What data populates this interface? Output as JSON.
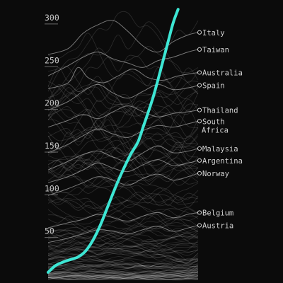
{
  "chart_data": {
    "type": "line",
    "y_ticks": [
      50,
      100,
      150,
      200,
      250,
      300
    ],
    "ylim": [
      0,
      318
    ],
    "grid": false,
    "x_range": [
      0,
      70
    ],
    "highlight_color": "#3de6d4",
    "highlighted_series": {
      "values": [
        [
          0,
          10
        ],
        [
          3,
          18
        ],
        [
          6,
          22
        ],
        [
          9,
          25
        ],
        [
          12,
          28
        ],
        [
          15,
          35
        ],
        [
          18,
          48
        ],
        [
          21,
          66
        ],
        [
          24,
          88
        ],
        [
          27,
          110
        ],
        [
          30,
          130
        ],
        [
          33,
          148
        ],
        [
          36,
          163
        ],
        [
          38,
          180
        ],
        [
          40,
          197
        ],
        [
          42,
          215
        ],
        [
          44,
          236
        ],
        [
          46,
          258
        ],
        [
          48,
          280
        ],
        [
          50,
          302
        ],
        [
          52,
          318
        ]
      ]
    },
    "labeled_series": [
      {
        "name": "Italy",
        "end_value": 291,
        "values": [
          [
            0,
            265
          ],
          [
            8,
            272
          ],
          [
            14,
            290
          ],
          [
            20,
            300
          ],
          [
            26,
            305
          ],
          [
            32,
            292
          ],
          [
            38,
            275
          ],
          [
            44,
            268
          ],
          [
            50,
            280
          ],
          [
            56,
            288
          ],
          [
            60,
            291
          ]
        ]
      },
      {
        "name": "Taiwan",
        "end_value": 271,
        "values": [
          [
            0,
            240
          ],
          [
            8,
            252
          ],
          [
            14,
            262
          ],
          [
            20,
            268
          ],
          [
            26,
            260
          ],
          [
            32,
            255
          ],
          [
            38,
            250
          ],
          [
            44,
            258
          ],
          [
            50,
            262
          ],
          [
            56,
            268
          ],
          [
            60,
            271
          ]
        ]
      },
      {
        "name": "Australia",
        "end_value": 244,
        "values": [
          [
            0,
            225
          ],
          [
            8,
            232
          ],
          [
            12,
            250
          ],
          [
            16,
            238
          ],
          [
            22,
            232
          ],
          [
            28,
            240
          ],
          [
            34,
            248
          ],
          [
            40,
            238
          ],
          [
            46,
            235
          ],
          [
            52,
            240
          ],
          [
            60,
            244
          ]
        ]
      },
      {
        "name": "Spain",
        "end_value": 229,
        "values": [
          [
            0,
            200
          ],
          [
            8,
            210
          ],
          [
            14,
            222
          ],
          [
            20,
            230
          ],
          [
            26,
            220
          ],
          [
            32,
            214
          ],
          [
            38,
            222
          ],
          [
            44,
            230
          ],
          [
            50,
            224
          ],
          [
            56,
            226
          ],
          [
            60,
            229
          ]
        ]
      },
      {
        "name": "Thailand",
        "end_value": 200,
        "values": [
          [
            0,
            180
          ],
          [
            8,
            188
          ],
          [
            14,
            195
          ],
          [
            20,
            190
          ],
          [
            26,
            198
          ],
          [
            32,
            205
          ],
          [
            38,
            198
          ],
          [
            44,
            192
          ],
          [
            50,
            196
          ],
          [
            56,
            198
          ],
          [
            60,
            200
          ]
        ]
      },
      {
        "name": "South\nAfrica",
        "end_value": 187,
        "values": [
          [
            0,
            150
          ],
          [
            8,
            160
          ],
          [
            14,
            170
          ],
          [
            20,
            178
          ],
          [
            26,
            172
          ],
          [
            32,
            168
          ],
          [
            38,
            176
          ],
          [
            44,
            182
          ],
          [
            50,
            180
          ],
          [
            56,
            184
          ],
          [
            60,
            187
          ]
        ]
      },
      {
        "name": "Malaysia",
        "end_value": 155,
        "values": [
          [
            0,
            130
          ],
          [
            8,
            140
          ],
          [
            14,
            148
          ],
          [
            20,
            152
          ],
          [
            26,
            145
          ],
          [
            32,
            140
          ],
          [
            38,
            150
          ],
          [
            44,
            158
          ],
          [
            50,
            150
          ],
          [
            56,
            152
          ],
          [
            60,
            155
          ]
        ]
      },
      {
        "name": "Argentina",
        "end_value": 141,
        "values": [
          [
            0,
            115
          ],
          [
            8,
            122
          ],
          [
            14,
            130
          ],
          [
            20,
            138
          ],
          [
            26,
            132
          ],
          [
            32,
            128
          ],
          [
            38,
            136
          ],
          [
            44,
            142
          ],
          [
            50,
            135
          ],
          [
            56,
            138
          ],
          [
            60,
            141
          ]
        ]
      },
      {
        "name": "Norway",
        "end_value": 126,
        "values": [
          [
            0,
            100
          ],
          [
            8,
            108
          ],
          [
            14,
            115
          ],
          [
            20,
            122
          ],
          [
            26,
            118
          ],
          [
            32,
            112
          ],
          [
            38,
            120
          ],
          [
            44,
            125
          ],
          [
            50,
            118
          ],
          [
            56,
            122
          ],
          [
            60,
            126
          ]
        ]
      },
      {
        "name": "Belgium",
        "end_value": 80,
        "values": [
          [
            0,
            62
          ],
          [
            8,
            68
          ],
          [
            14,
            72
          ],
          [
            20,
            78
          ],
          [
            26,
            74
          ],
          [
            32,
            70
          ],
          [
            38,
            76
          ],
          [
            44,
            80
          ],
          [
            50,
            74
          ],
          [
            56,
            78
          ],
          [
            60,
            80
          ]
        ]
      },
      {
        "name": "Austria",
        "end_value": 65,
        "values": [
          [
            0,
            45
          ],
          [
            8,
            50
          ],
          [
            14,
            55
          ],
          [
            20,
            60
          ],
          [
            26,
            58
          ],
          [
            32,
            55
          ],
          [
            38,
            60
          ],
          [
            44,
            64
          ],
          [
            50,
            58
          ],
          [
            56,
            62
          ],
          [
            60,
            65
          ]
        ]
      }
    ]
  }
}
